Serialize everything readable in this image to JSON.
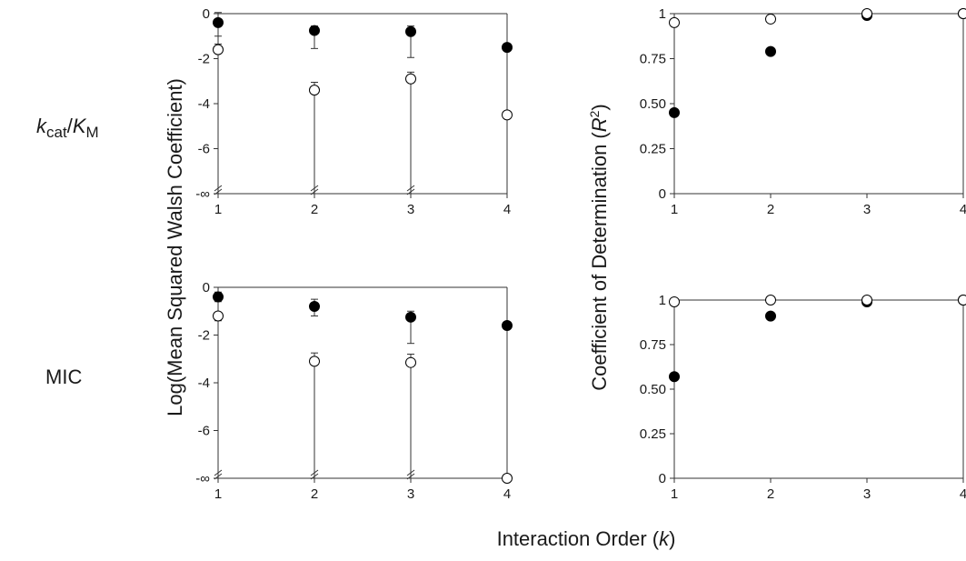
{
  "figure": {
    "row_labels": {
      "top": {
        "main": "k",
        "sub_cat": "cat",
        "slash": "/",
        "K": "K",
        "sub_M": "M"
      },
      "bottom": "MIC"
    },
    "ylabel_left": "Log(Mean Squared Walsh Coefficient)",
    "ylabel_right": {
      "prefix": "Coefficient of Determination (",
      "R": "R",
      "sup": "2",
      "suffix": ")"
    },
    "xlabel": {
      "prefix": "Interaction Order (",
      "k": "k",
      "suffix": ")"
    }
  },
  "chart_data": [
    {
      "id": "walsh-kcat",
      "type": "scatter",
      "x_ticks": [
        "1",
        "2",
        "3",
        "4"
      ],
      "y_ticks": [
        {
          "value": 0,
          "label": "0"
        },
        {
          "value": -2,
          "label": "-2"
        },
        {
          "value": -4,
          "label": "-4"
        },
        {
          "value": -6,
          "label": "-6"
        },
        {
          "value": -8,
          "label": "-∞"
        }
      ],
      "ylim": [
        -8,
        0
      ],
      "ylabel": "Log(Mean Squared Walsh Coefficient)",
      "axis_break": true,
      "series": [
        {
          "marker": "filled",
          "points": [
            {
              "x": 1,
              "y": -0.4,
              "err_lo": -1.0,
              "err_hi": 0.05
            },
            {
              "x": 2,
              "y": -0.75,
              "err_lo": -1.55,
              "err_hi": -0.55
            },
            {
              "x": 3,
              "y": -0.8,
              "err_lo": -1.95,
              "err_hi": -0.55
            },
            {
              "x": 4,
              "y": -1.5
            }
          ]
        },
        {
          "marker": "open",
          "points": [
            {
              "x": 1,
              "y": -1.6,
              "err_lo": -1.75,
              "err_hi": -1.35
            },
            {
              "x": 2,
              "y": -3.4,
              "err_lo": -8,
              "err_hi": -3.05
            },
            {
              "x": 3,
              "y": -2.9,
              "err_lo": -8,
              "err_hi": -2.6
            },
            {
              "x": 4,
              "y": -4.5
            }
          ]
        }
      ]
    },
    {
      "id": "r2-kcat",
      "type": "scatter",
      "x_ticks": [
        "1",
        "2",
        "3",
        "4"
      ],
      "y_ticks": [
        {
          "value": 0,
          "label": "0"
        },
        {
          "value": 0.25,
          "label": "0.25"
        },
        {
          "value": 0.5,
          "label": "0.50"
        },
        {
          "value": 0.75,
          "label": "0.75"
        },
        {
          "value": 1,
          "label": "1"
        }
      ],
      "ylim": [
        0,
        1
      ],
      "ylabel": "Coefficient of Determination (R²)",
      "series": [
        {
          "marker": "filled",
          "points": [
            {
              "x": 1,
              "y": 0.45
            },
            {
              "x": 2,
              "y": 0.79
            },
            {
              "x": 3,
              "y": 0.99
            },
            {
              "x": 4,
              "y": 1.0
            }
          ]
        },
        {
          "marker": "open",
          "points": [
            {
              "x": 1,
              "y": 0.95
            },
            {
              "x": 2,
              "y": 0.97
            },
            {
              "x": 3,
              "y": 1.0
            },
            {
              "x": 4,
              "y": 1.0
            }
          ]
        }
      ]
    },
    {
      "id": "walsh-mic",
      "type": "scatter",
      "x_ticks": [
        "1",
        "2",
        "3",
        "4"
      ],
      "y_ticks": [
        {
          "value": 0,
          "label": "0"
        },
        {
          "value": -2,
          "label": "-2"
        },
        {
          "value": -4,
          "label": "-4"
        },
        {
          "value": -6,
          "label": "-6"
        },
        {
          "value": -8,
          "label": "-∞"
        }
      ],
      "ylim": [
        -8,
        0
      ],
      "ylabel": "Log(Mean Squared Walsh Coefficient)",
      "axis_break": true,
      "series": [
        {
          "marker": "filled",
          "points": [
            {
              "x": 1,
              "y": -0.4,
              "err_lo": -0.6,
              "err_hi": -0.2
            },
            {
              "x": 2,
              "y": -0.8,
              "err_lo": -1.2,
              "err_hi": -0.5
            },
            {
              "x": 3,
              "y": -1.25,
              "err_lo": -2.35,
              "err_hi": -1.0
            },
            {
              "x": 4,
              "y": -1.6
            }
          ]
        },
        {
          "marker": "open",
          "points": [
            {
              "x": 1,
              "y": -1.2,
              "err_lo": -1.4,
              "err_hi": -1.05
            },
            {
              "x": 2,
              "y": -3.1,
              "err_lo": -8,
              "err_hi": -2.75
            },
            {
              "x": 3,
              "y": -3.15,
              "err_lo": -8,
              "err_hi": -2.8
            },
            {
              "x": 4,
              "y": -8
            }
          ]
        }
      ]
    },
    {
      "id": "r2-mic",
      "type": "scatter",
      "x_ticks": [
        "1",
        "2",
        "3",
        "4"
      ],
      "y_ticks": [
        {
          "value": 0,
          "label": "0"
        },
        {
          "value": 0.25,
          "label": "0.25"
        },
        {
          "value": 0.5,
          "label": "0.50"
        },
        {
          "value": 0.75,
          "label": "0.75"
        },
        {
          "value": 1,
          "label": "1"
        }
      ],
      "ylim": [
        0,
        1
      ],
      "ylabel": "Coefficient of Determination (R²)",
      "series": [
        {
          "marker": "filled",
          "points": [
            {
              "x": 1,
              "y": 0.57
            },
            {
              "x": 2,
              "y": 0.91
            },
            {
              "x": 3,
              "y": 0.99
            },
            {
              "x": 4,
              "y": 1.0
            }
          ]
        },
        {
          "marker": "open",
          "points": [
            {
              "x": 1,
              "y": 0.99
            },
            {
              "x": 2,
              "y": 1.0
            },
            {
              "x": 3,
              "y": 1.0
            },
            {
              "x": 4,
              "y": 1.0
            }
          ]
        }
      ]
    }
  ]
}
